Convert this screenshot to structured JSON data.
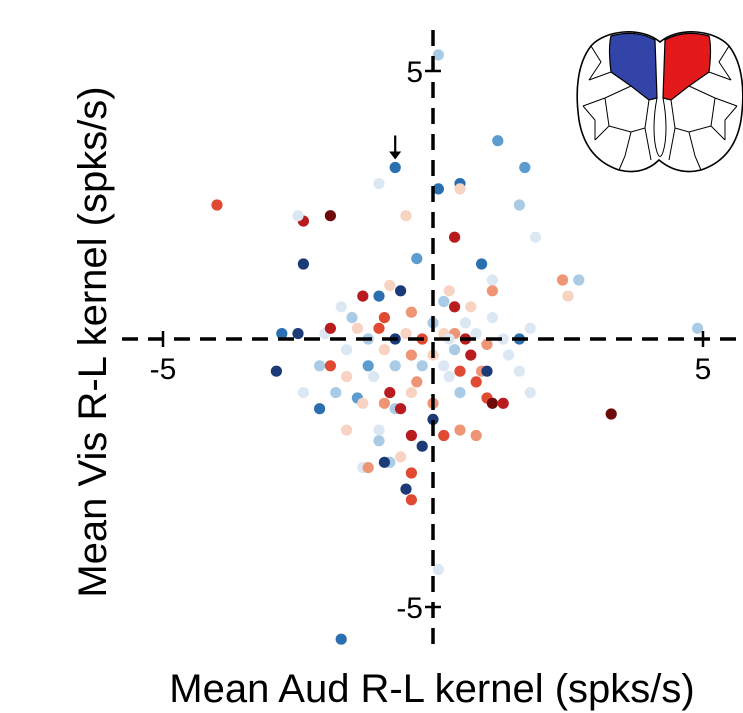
{
  "chart_data": {
    "type": "scatter",
    "title": "",
    "xlabel": "Mean Aud R-L kernel (spks/s)",
    "ylabel": "Mean Vis R-L kernel (spks/s)",
    "xlim": [
      -5.3,
      5.6
    ],
    "ylim": [
      -5.9,
      5.6
    ],
    "x_ticks": [
      -5,
      5
    ],
    "y_ticks": [
      5,
      -5
    ],
    "x_tick_labels": [
      "-5",
      "5"
    ],
    "y_tick_labels": [
      "5",
      "-5"
    ],
    "zero_lines": "dashed",
    "grid": false,
    "legend": "none",
    "inset": "brain outline, left hemisphere region in blue, right hemisphere region in red",
    "annotation": "arrow pointing down at highlighted point",
    "arrow_target": [
      -0.7,
      3.2
    ],
    "colors": {
      "dark_blue": "#1c3a78",
      "blue": "#2c6fb0",
      "mid_blue": "#5c9ccf",
      "light_blue": "#a9cbe6",
      "pale_blue": "#dbe8f4",
      "pale_red": "#f8d3c2",
      "light_red": "#ef9474",
      "red": "#e04a32",
      "dark_red": "#b81c1f",
      "darkest_red": "#6e0a0a"
    },
    "points": [
      {
        "x": 0.1,
        "y": 5.3,
        "c": "light_blue"
      },
      {
        "x": 1.2,
        "y": 3.7,
        "c": "mid_blue"
      },
      {
        "x": -0.7,
        "y": 3.2,
        "c": "blue"
      },
      {
        "x": 0.1,
        "y": 2.8,
        "c": "blue"
      },
      {
        "x": 0.5,
        "y": 2.9,
        "c": "blue"
      },
      {
        "x": 0.5,
        "y": 2.8,
        "c": "pale_red"
      },
      {
        "x": 1.7,
        "y": 3.2,
        "c": "mid_blue"
      },
      {
        "x": 1.6,
        "y": 2.5,
        "c": "light_blue"
      },
      {
        "x": -1.0,
        "y": 2.9,
        "c": "pale_blue"
      },
      {
        "x": -4.0,
        "y": 2.5,
        "c": "red"
      },
      {
        "x": -2.4,
        "y": 2.2,
        "c": "dark_red"
      },
      {
        "x": -1.9,
        "y": 2.3,
        "c": "darkest_red"
      },
      {
        "x": -2.5,
        "y": 2.3,
        "c": "pale_blue"
      },
      {
        "x": -0.5,
        "y": 2.3,
        "c": "pale_red"
      },
      {
        "x": 0.4,
        "y": 1.9,
        "c": "dark_red"
      },
      {
        "x": 1.9,
        "y": 1.9,
        "c": "pale_blue"
      },
      {
        "x": -2.4,
        "y": 1.4,
        "c": "dark_blue"
      },
      {
        "x": -0.3,
        "y": 1.5,
        "c": "mid_blue"
      },
      {
        "x": 0.9,
        "y": 1.4,
        "c": "blue"
      },
      {
        "x": 1.1,
        "y": 1.1,
        "c": "pale_blue"
      },
      {
        "x": 2.4,
        "y": 1.1,
        "c": "light_red"
      },
      {
        "x": 2.7,
        "y": 1.1,
        "c": "light_blue"
      },
      {
        "x": 2.5,
        "y": 0.8,
        "c": "pale_red"
      },
      {
        "x": 1.1,
        "y": 0.9,
        "c": "light_red"
      },
      {
        "x": -0.8,
        "y": 1.0,
        "c": "pale_red"
      },
      {
        "x": 0.3,
        "y": 0.9,
        "c": "pale_red"
      },
      {
        "x": -1.3,
        "y": 0.8,
        "c": "dark_red"
      },
      {
        "x": -1.0,
        "y": 0.8,
        "c": "blue"
      },
      {
        "x": -0.6,
        "y": 0.9,
        "c": "dark_blue"
      },
      {
        "x": 0.2,
        "y": 0.7,
        "c": "light_blue"
      },
      {
        "x": 0.4,
        "y": 0.6,
        "c": "dark_red"
      },
      {
        "x": 0.7,
        "y": 0.6,
        "c": "pale_red"
      },
      {
        "x": -0.9,
        "y": 0.4,
        "c": "red"
      },
      {
        "x": -1.7,
        "y": 0.6,
        "c": "pale_blue"
      },
      {
        "x": -1.5,
        "y": 0.4,
        "c": "light_blue"
      },
      {
        "x": -0.4,
        "y": 0.5,
        "c": "light_red"
      },
      {
        "x": 0.0,
        "y": 0.3,
        "c": "light_blue"
      },
      {
        "x": 0.6,
        "y": 0.3,
        "c": "pale_blue"
      },
      {
        "x": 1.1,
        "y": 0.4,
        "c": "pale_blue"
      },
      {
        "x": -2.8,
        "y": 0.1,
        "c": "blue"
      },
      {
        "x": -2.5,
        "y": 0.1,
        "c": "dark_blue"
      },
      {
        "x": -2.0,
        "y": 0.1,
        "c": "pale_blue"
      },
      {
        "x": -1.9,
        "y": 0.2,
        "c": "dark_red"
      },
      {
        "x": -1.4,
        "y": 0.2,
        "c": "pale_red"
      },
      {
        "x": -1.0,
        "y": 0.2,
        "c": "red"
      },
      {
        "x": -0.5,
        "y": 0.1,
        "c": "pale_red"
      },
      {
        "x": 0.2,
        "y": 0.1,
        "c": "pale_red"
      },
      {
        "x": 0.4,
        "y": 0.1,
        "c": "light_red"
      },
      {
        "x": 0.8,
        "y": 0.1,
        "c": "pale_blue"
      },
      {
        "x": 1.3,
        "y": 0.0,
        "c": "pale_blue"
      },
      {
        "x": 1.6,
        "y": 0.0,
        "c": "blue"
      },
      {
        "x": 1.8,
        "y": 0.2,
        "c": "pale_blue"
      },
      {
        "x": 4.9,
        "y": 0.2,
        "c": "light_blue"
      },
      {
        "x": -1.2,
        "y": 0.0,
        "c": "light_blue"
      },
      {
        "x": -0.7,
        "y": 0.0,
        "c": "dark_blue"
      },
      {
        "x": -0.2,
        "y": 0.0,
        "c": "red"
      },
      {
        "x": 0.3,
        "y": 0.0,
        "c": "pale_blue"
      },
      {
        "x": 0.6,
        "y": 0.0,
        "c": "dark_red"
      },
      {
        "x": 1.0,
        "y": -0.1,
        "c": "light_red"
      },
      {
        "x": -1.6,
        "y": -0.2,
        "c": "pale_blue"
      },
      {
        "x": -0.9,
        "y": -0.2,
        "c": "pale_red"
      },
      {
        "x": -0.4,
        "y": -0.3,
        "c": "light_red"
      },
      {
        "x": 0.0,
        "y": -0.3,
        "c": "pale_red"
      },
      {
        "x": 0.4,
        "y": -0.2,
        "c": "light_blue"
      },
      {
        "x": 0.7,
        "y": -0.3,
        "c": "dark_red"
      },
      {
        "x": 1.4,
        "y": -0.3,
        "c": "pale_blue"
      },
      {
        "x": -0.2,
        "y": -0.5,
        "c": "light_blue"
      },
      {
        "x": 0.2,
        "y": -0.5,
        "c": "pale_blue"
      },
      {
        "x": -2.1,
        "y": -0.5,
        "c": "light_blue"
      },
      {
        "x": -1.9,
        "y": -0.5,
        "c": "red"
      },
      {
        "x": -1.2,
        "y": -0.5,
        "c": "mid_blue"
      },
      {
        "x": -0.7,
        "y": -0.5,
        "c": "light_blue"
      },
      {
        "x": 0.5,
        "y": -0.6,
        "c": "red"
      },
      {
        "x": 0.9,
        "y": -0.6,
        "c": "light_red"
      },
      {
        "x": 1.0,
        "y": -0.6,
        "c": "dark_blue"
      },
      {
        "x": 1.6,
        "y": -0.6,
        "c": "pale_blue"
      },
      {
        "x": -2.9,
        "y": -0.6,
        "c": "dark_blue"
      },
      {
        "x": -1.6,
        "y": -0.7,
        "c": "pale_red"
      },
      {
        "x": -1.1,
        "y": -0.7,
        "c": "pale_blue"
      },
      {
        "x": -0.3,
        "y": -0.8,
        "c": "light_red"
      },
      {
        "x": 0.3,
        "y": -0.7,
        "c": "pale_blue"
      },
      {
        "x": 0.8,
        "y": -0.8,
        "c": "red"
      },
      {
        "x": -2.4,
        "y": -1.0,
        "c": "pale_blue"
      },
      {
        "x": -1.8,
        "y": -1.0,
        "c": "light_blue"
      },
      {
        "x": -1.4,
        "y": -1.1,
        "c": "mid_blue"
      },
      {
        "x": -0.8,
        "y": -1.0,
        "c": "dark_red"
      },
      {
        "x": -0.4,
        "y": -1.0,
        "c": "pale_red"
      },
      {
        "x": 0.5,
        "y": -1.0,
        "c": "light_blue"
      },
      {
        "x": 1.0,
        "y": -1.1,
        "c": "red"
      },
      {
        "x": 1.8,
        "y": -1.0,
        "c": "pale_blue"
      },
      {
        "x": -1.3,
        "y": -1.2,
        "c": "pale_red"
      },
      {
        "x": -0.9,
        "y": -1.2,
        "c": "light_red"
      },
      {
        "x": 1.1,
        "y": -1.2,
        "c": "darkest_red"
      },
      {
        "x": 1.3,
        "y": -1.2,
        "c": "pale_blue"
      },
      {
        "x": -2.1,
        "y": -1.3,
        "c": "blue"
      },
      {
        "x": -0.7,
        "y": -1.3,
        "c": "light_blue"
      },
      {
        "x": 0.0,
        "y": -1.2,
        "c": "light_red"
      },
      {
        "x": 1.3,
        "y": -1.2,
        "c": "dark_red"
      },
      {
        "x": -0.6,
        "y": -1.3,
        "c": "dark_red"
      },
      {
        "x": 0.0,
        "y": -1.5,
        "c": "dark_blue"
      },
      {
        "x": 3.3,
        "y": -1.4,
        "c": "darkest_red"
      },
      {
        "x": -1.6,
        "y": -1.7,
        "c": "pale_red"
      },
      {
        "x": -1.0,
        "y": -1.7,
        "c": "pale_blue"
      },
      {
        "x": 0.5,
        "y": -1.7,
        "c": "light_red"
      },
      {
        "x": -0.4,
        "y": -1.8,
        "c": "dark_red"
      },
      {
        "x": 0.2,
        "y": -1.8,
        "c": "red"
      },
      {
        "x": 0.8,
        "y": -1.8,
        "c": "light_red"
      },
      {
        "x": -1.0,
        "y": -1.9,
        "c": "light_blue"
      },
      {
        "x": -0.2,
        "y": -2.0,
        "c": "dark_blue"
      },
      {
        "x": -0.6,
        "y": -2.2,
        "c": "pale_red"
      },
      {
        "x": -0.8,
        "y": -2.3,
        "c": "light_blue"
      },
      {
        "x": -0.9,
        "y": -2.3,
        "c": "dark_blue"
      },
      {
        "x": -1.3,
        "y": -2.4,
        "c": "pale_blue"
      },
      {
        "x": -1.2,
        "y": -2.4,
        "c": "light_red"
      },
      {
        "x": -0.4,
        "y": -2.5,
        "c": "red"
      },
      {
        "x": -0.5,
        "y": -2.8,
        "c": "pale_red"
      },
      {
        "x": -0.5,
        "y": -2.8,
        "c": "dark_blue"
      },
      {
        "x": -0.4,
        "y": -3.0,
        "c": "red"
      },
      {
        "x": 0.1,
        "y": -4.3,
        "c": "pale_blue"
      },
      {
        "x": -1.7,
        "y": -5.6,
        "c": "blue"
      }
    ]
  }
}
